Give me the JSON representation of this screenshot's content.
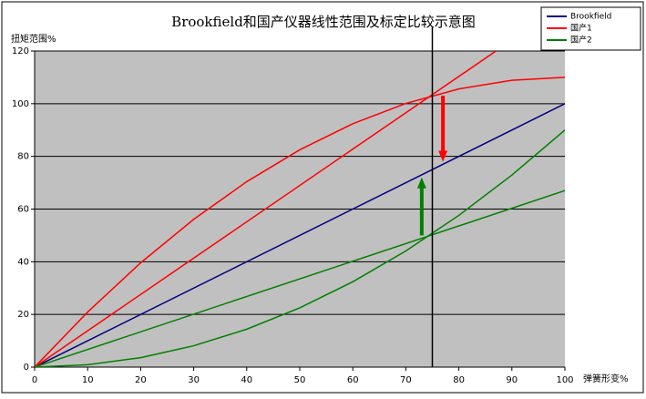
{
  "chart_data": {
    "type": "line",
    "title": "Brookfield和国产仪器线性范围及标定比较示意图",
    "y_label": "扭矩范围%",
    "x_label": "弹簧形变%",
    "xlim": [
      0,
      100
    ],
    "xticks": [
      0,
      10,
      20,
      30,
      40,
      50,
      60,
      70,
      80,
      90,
      100
    ],
    "ylim": [
      0,
      120
    ],
    "yticks": [
      0,
      20,
      40,
      60,
      80,
      100,
      120
    ],
    "grid": true,
    "legend": "top-right",
    "background": "#c0c0c0",
    "vline": 75,
    "series": [
      {
        "name": "Brookfield",
        "color": "#000080",
        "x": [
          0,
          100
        ],
        "values": [
          0,
          100
        ]
      },
      {
        "name": "国产1",
        "color": "#ff0000",
        "x": [
          0,
          10,
          20,
          30,
          40,
          50,
          60,
          70,
          80,
          90,
          100
        ],
        "values": [
          0,
          20.9,
          39.6,
          56.1,
          70.4,
          82.5,
          92.4,
          100.1,
          105.6,
          108.9,
          110
        ]
      },
      {
        "color": "#ff0000",
        "x": [
          0,
          87
        ],
        "values": [
          0,
          120
        ]
      },
      {
        "name": "国产2",
        "color": "#008000",
        "x": [
          0,
          10,
          20,
          30,
          40,
          50,
          60,
          70,
          80,
          90,
          100
        ],
        "values": [
          0,
          0.9,
          3.6,
          8.1,
          14.4,
          22.5,
          32.4,
          44.1,
          57.6,
          72.9,
          90
        ]
      },
      {
        "color": "#008000",
        "x": [
          0,
          100
        ],
        "values": [
          0,
          67
        ]
      }
    ],
    "arrows": [
      {
        "x": 77,
        "from": 103,
        "to": 78,
        "color": "#ff0000"
      },
      {
        "x": 73,
        "from": 50,
        "to": 72,
        "color": "#008000"
      }
    ]
  }
}
